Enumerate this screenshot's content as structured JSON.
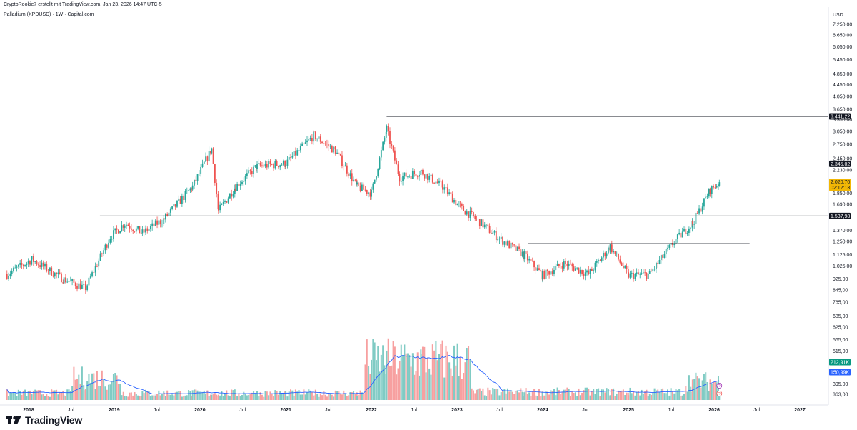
{
  "header": {
    "attribution": "CryptoRookie7 erstellt mit TradingView.com, Jan 23, 2026 14:47 UTC-5",
    "symbol": "Palladium (XPDUSD) · 1W · Capital.com"
  },
  "brand": {
    "name": "TradingView"
  },
  "colors": {
    "up": "#26a69a",
    "down": "#ef5350",
    "volume_up": "#80cbc4",
    "volume_down": "#f7a0a0",
    "ma": "#2962ff",
    "line": "#131722",
    "current_price": "#f2b705",
    "volume_up_tag": "#089981",
    "volume_ma_tag": "#2962ff"
  },
  "chart_data": {
    "type": "candlestick",
    "y_scale": "log",
    "y_axis_unit": "USD",
    "ylim": [
      340,
      7600
    ],
    "y_ticks": [
      "7.250,00",
      "6.650,00",
      "6.050,00",
      "5.450,00",
      "4.850,00",
      "4.450,00",
      "4.050,00",
      "3.650,00",
      "3.350,00",
      "3.050,00",
      "2.750,00",
      "2.450,00",
      "2.230,00",
      "1.850,00",
      "1.690,00",
      "1.370,00",
      "1.250,00",
      "1.125,00",
      "1.025,00",
      "925,00",
      "845,00",
      "765,00",
      "685,00",
      "625,00",
      "565,00",
      "515,00",
      "435,00",
      "395,00",
      "363,00"
    ],
    "x_labels": [
      "2018",
      "Jul",
      "2019",
      "Jul",
      "2020",
      "Jul",
      "2021",
      "Jul",
      "2022",
      "Jul",
      "2023",
      "Jul",
      "2024",
      "Jul",
      "2025",
      "Jul",
      "2026",
      "Jul",
      "2027"
    ],
    "price_path": [
      [
        "2017-10-01",
        960
      ],
      [
        "2018-01-15",
        1080
      ],
      [
        "2018-06-01",
        920
      ],
      [
        "2018-09-01",
        860
      ],
      [
        "2018-12-15",
        1300
      ],
      [
        "2019-02-15",
        1450
      ],
      [
        "2019-05-01",
        1340
      ],
      [
        "2019-08-01",
        1500
      ],
      [
        "2019-12-01",
        1950
      ],
      [
        "2020-02-20",
        2650
      ],
      [
        "2020-03-20",
        1600
      ],
      [
        "2020-06-01",
        1950
      ],
      [
        "2020-09-01",
        2300
      ],
      [
        "2021-01-01",
        2350
      ],
      [
        "2021-05-01",
        2950
      ],
      [
        "2021-08-01",
        2600
      ],
      [
        "2021-11-01",
        1950
      ],
      [
        "2022-01-01",
        1850
      ],
      [
        "2022-03-07",
        3100
      ],
      [
        "2022-05-01",
        2100
      ],
      [
        "2022-08-01",
        2200
      ],
      [
        "2022-11-01",
        1950
      ],
      [
        "2023-01-15",
        1650
      ],
      [
        "2023-04-01",
        1480
      ],
      [
        "2023-07-01",
        1280
      ],
      [
        "2023-10-15",
        1120
      ],
      [
        "2024-01-01",
        950
      ],
      [
        "2024-04-01",
        1050
      ],
      [
        "2024-07-15",
        960
      ],
      [
        "2024-10-15",
        1200
      ],
      [
        "2025-01-01",
        950
      ],
      [
        "2025-04-01",
        960
      ],
      [
        "2025-07-15",
        1250
      ],
      [
        "2025-10-01",
        1450
      ],
      [
        "2025-12-15",
        1900
      ],
      [
        "2026-01-23",
        2020.7
      ]
    ],
    "horizontal_levels": [
      {
        "value": 3441.22,
        "label": "3.441,22",
        "from": "2022-03-07",
        "style": "solid"
      },
      {
        "value": 2345.02,
        "label": "2.345,02",
        "from": "2022-10-01",
        "style": "dotted"
      },
      {
        "value": 1537.98,
        "label": "1.537,98",
        "from": "2018-11-01",
        "style": "solid"
      },
      {
        "value": 1230,
        "from": "2023-11-01",
        "to": "2026-06-01",
        "style": "solid-thin"
      }
    ],
    "current_price": {
      "label": "2.020,70",
      "countdown": "02:12:13"
    },
    "volume": {
      "last_value_label": "212,91K",
      "ma_value_label": "150,99K",
      "marker_up": "?",
      "marker_down": "?"
    }
  }
}
